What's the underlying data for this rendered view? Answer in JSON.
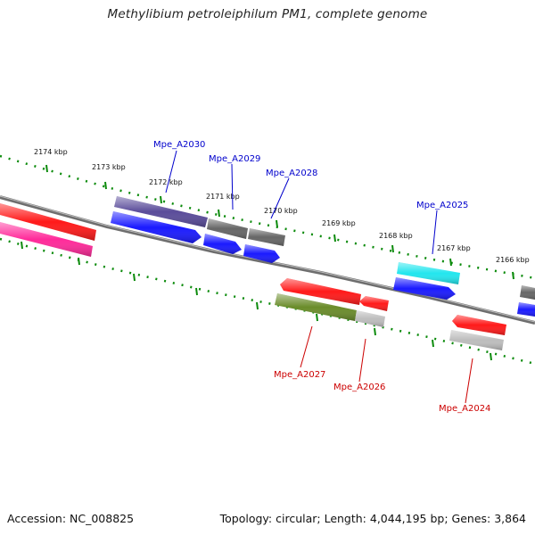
{
  "title": "Methylibium petroleiphilum PM1, complete genome",
  "accession": "Accession: NC_008825",
  "topology": "Topology: circular; Length: 4,044,195 bp; Genes: 3,864",
  "colors": {
    "backbone": "#7a7a7a",
    "tick": "#0a8a0a",
    "forward_label": "#0000cc",
    "reverse_label": "#cc0000",
    "red": "#ff1a1a",
    "blue": "#1a1aff",
    "purple": "#5a4c9a",
    "gray": "#666666",
    "cyan": "#22e6ee",
    "green": "#6a8c2a",
    "lightgray": "#bdbdbd",
    "pink": "#ff2a9a"
  },
  "ruler": {
    "ticks": [
      {
        "label": "2174 kbp"
      },
      {
        "label": "2173 kbp"
      },
      {
        "label": "2172 kbp"
      },
      {
        "label": "2171 kbp"
      },
      {
        "label": "2170 kbp"
      },
      {
        "label": "2169 kbp"
      },
      {
        "label": "2168 kbp"
      },
      {
        "label": "2167 kbp"
      },
      {
        "label": "2166 kbp"
      }
    ]
  },
  "labels": {
    "forward": [
      "Mpe_A2030",
      "Mpe_A2029",
      "Mpe_A2028",
      "Mpe_A2025"
    ],
    "reverse": [
      "Mpe_A2027",
      "Mpe_A2026",
      "Mpe_A2024"
    ]
  }
}
